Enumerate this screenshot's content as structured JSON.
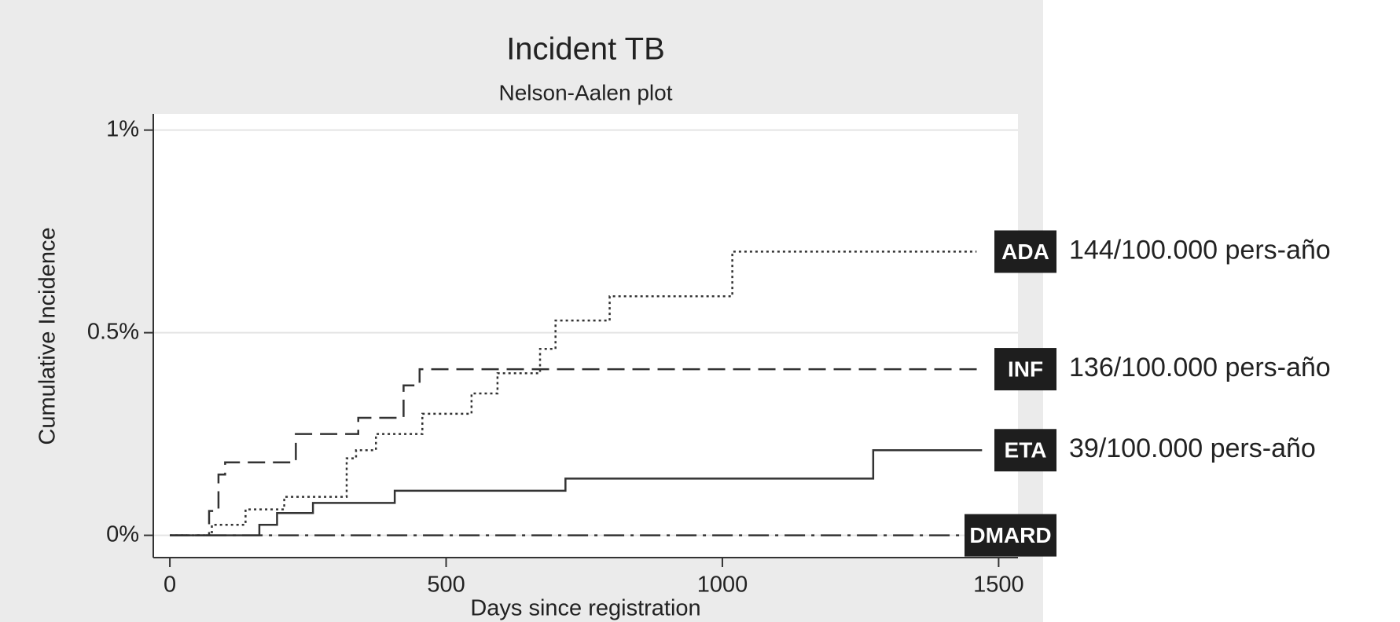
{
  "chart_data": {
    "type": "step",
    "title": "Incident TB",
    "subtitle": "Nelson-Aalen plot",
    "x_label": "Days since registration",
    "y_label": "Cumulative Incidence",
    "xlim": [
      -30,
      1535
    ],
    "ylim": [
      -0.055,
      1.04
    ],
    "xticks": [
      0,
      500,
      1000,
      1500
    ],
    "yticks": [
      {
        "value": 0,
        "label": "0%"
      },
      {
        "value": 0.5,
        "label": "0.5%"
      },
      {
        "value": 1,
        "label": "1%"
      }
    ],
    "grid": true,
    "series": [
      {
        "name": "ADA",
        "color": "#333333",
        "linestyle": "dotted",
        "rate": "144/100.000 pers-año",
        "x": [
          0,
          76,
          137,
          207,
          320,
          337,
          373,
          457,
          546,
          593,
          670,
          698,
          796,
          1018,
          1460
        ],
        "values": [
          0,
          0.026,
          0.064,
          0.095,
          0.19,
          0.21,
          0.25,
          0.3,
          0.35,
          0.4,
          0.46,
          0.53,
          0.59,
          0.7,
          0.7
        ]
      },
      {
        "name": "INF",
        "color": "#333333",
        "linestyle": "dashed",
        "rate": "136/100.000 pers-año",
        "x": [
          0,
          71,
          88,
          100,
          228,
          341,
          423,
          452,
          1470
        ],
        "values": [
          0,
          0.06,
          0.15,
          0.18,
          0.25,
          0.29,
          0.37,
          0.41,
          0.41
        ]
      },
      {
        "name": "ETA",
        "color": "#333333",
        "linestyle": "solid",
        "rate": "39/100.000 pers-año",
        "x": [
          0,
          162,
          194,
          259,
          407,
          716,
          1273,
          1470
        ],
        "values": [
          0,
          0.026,
          0.055,
          0.08,
          0.11,
          0.14,
          0.21,
          0.21
        ]
      },
      {
        "name": "DMARD",
        "color": "#333333",
        "linestyle": "dashdot",
        "x": [
          0,
          1470
        ],
        "values": [
          0,
          0
        ]
      }
    ]
  }
}
